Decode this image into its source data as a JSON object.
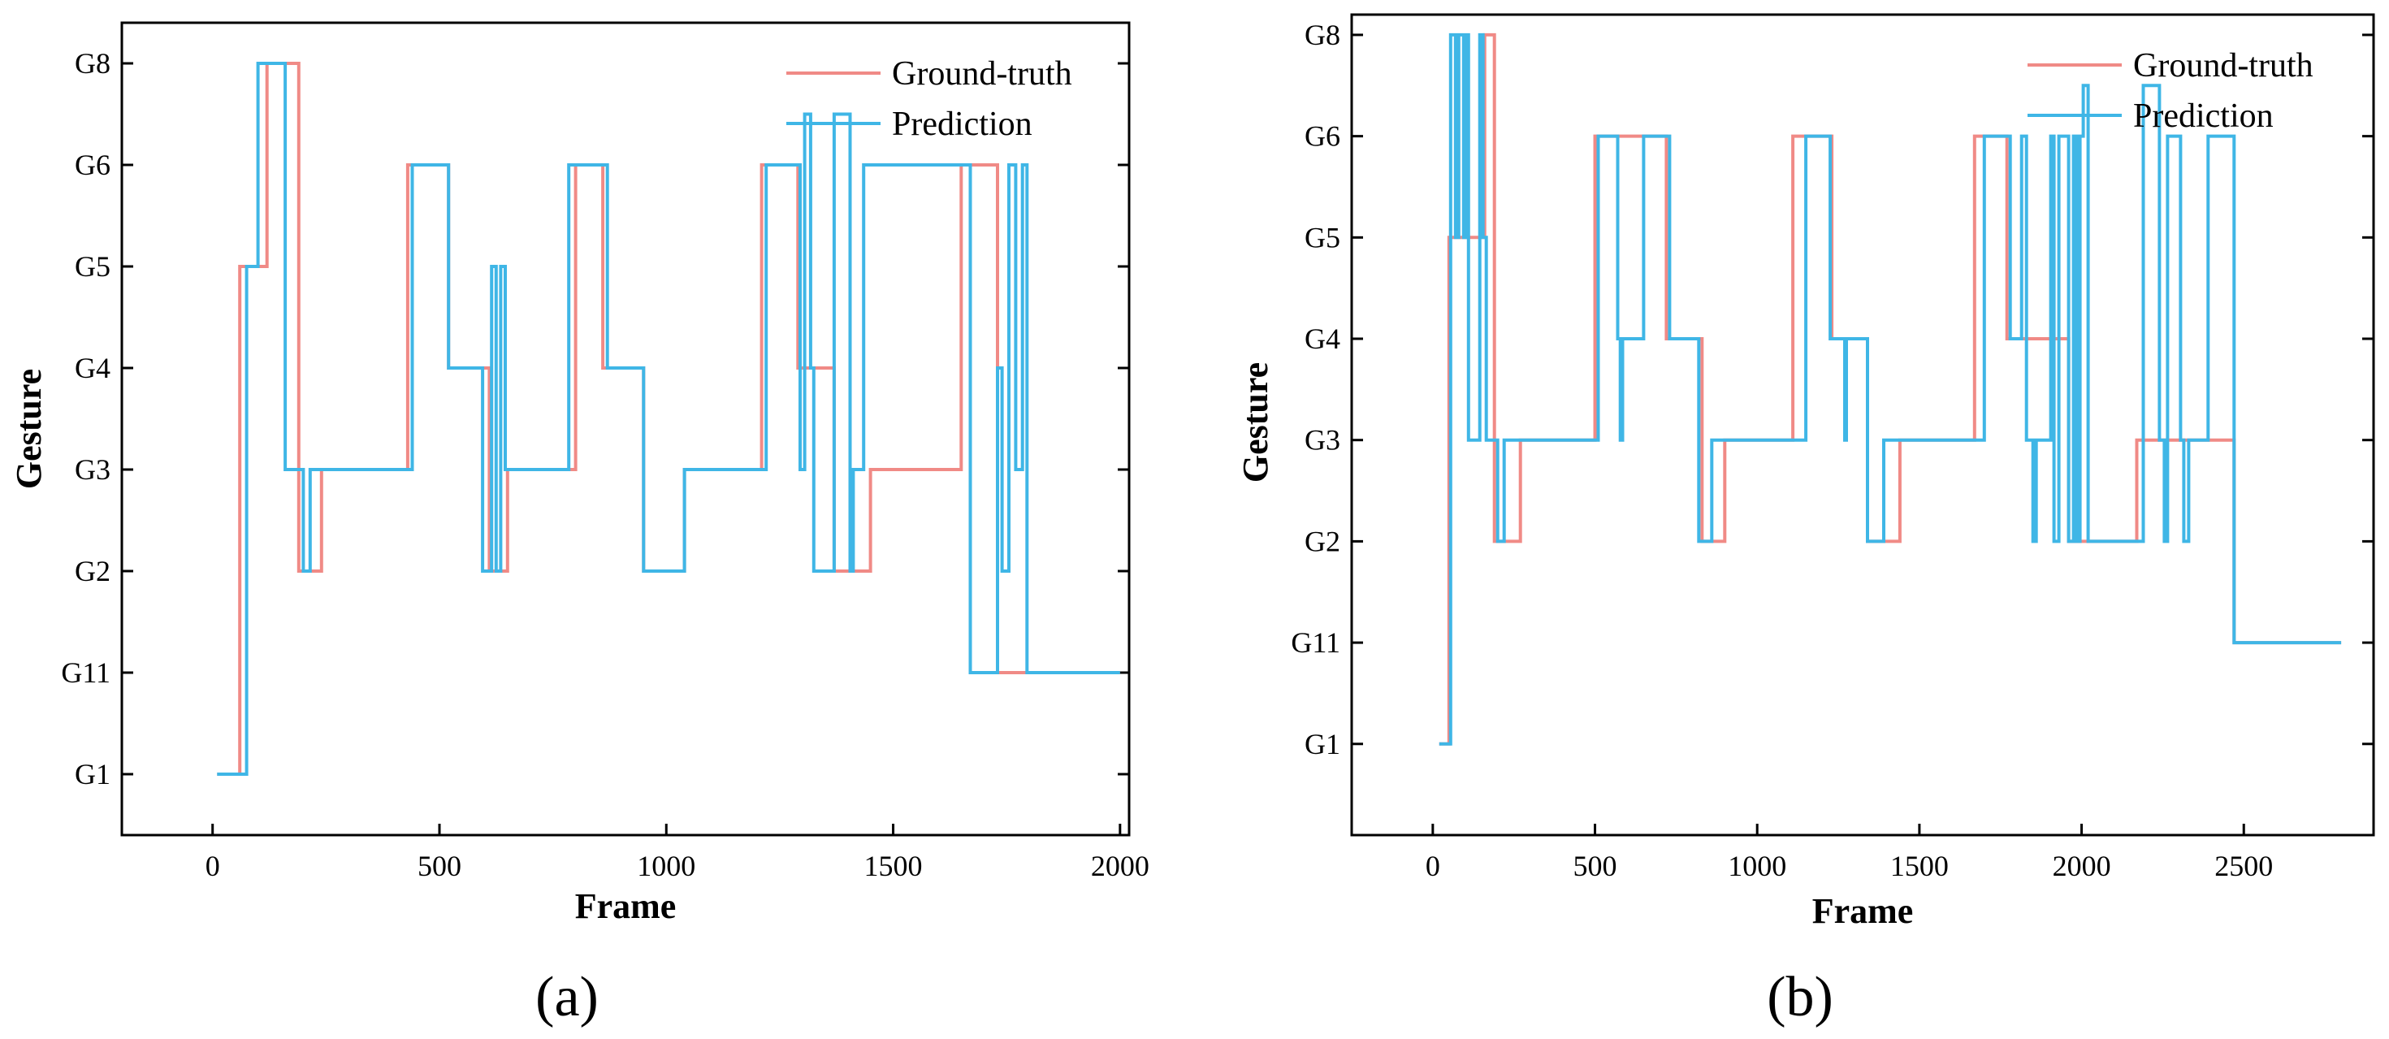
{
  "figure": {
    "panel_labels": [
      "(a)",
      "(b)"
    ]
  },
  "colors": {
    "ground_truth": "#f08a86",
    "prediction": "#3fb6e6",
    "axis": "#000000"
  },
  "chart_data": [
    {
      "type": "line",
      "step": true,
      "panel": "(a)",
      "title": "",
      "xlabel": "Frame",
      "ylabel": "Gesture",
      "xlim": [
        -200,
        2020
      ],
      "ylim": [
        -0.6,
        7.4
      ],
      "xticks": [
        0,
        500,
        1000,
        1500,
        2000
      ],
      "xtick_labels": [
        "0",
        "500",
        "1000",
        "1500",
        "2000"
      ],
      "yticks": [
        0,
        1,
        2,
        3,
        4,
        5,
        6,
        7
      ],
      "ytick_labels": [
        "G1",
        "G11",
        "G2",
        "G3",
        "G4",
        "G5",
        "G6",
        "G8"
      ],
      "legend_position": "top-right",
      "series": [
        {
          "name": "Ground-truth",
          "x": [
            10,
            60,
            60,
            120,
            120,
            190,
            190,
            240,
            240,
            430,
            430,
            520,
            520,
            610,
            610,
            650,
            650,
            800,
            800,
            860,
            860,
            950,
            950,
            1040,
            1040,
            1210,
            1210,
            1290,
            1290,
            1370,
            1370,
            1450,
            1450,
            1650,
            1650,
            1730,
            1730,
            1790,
            1790,
            2000
          ],
          "y": [
            0,
            0,
            5,
            5,
            7,
            7,
            2,
            2,
            3,
            3,
            6,
            6,
            4,
            4,
            2,
            2,
            3,
            3,
            6,
            6,
            4,
            4,
            2,
            2,
            3,
            3,
            6,
            6,
            4,
            4,
            2,
            2,
            3,
            3,
            6,
            6,
            1,
            1,
            1,
            1
          ]
        },
        {
          "name": "Prediction",
          "x": [
            10,
            75,
            75,
            100,
            100,
            160,
            160,
            200,
            200,
            215,
            215,
            440,
            440,
            520,
            520,
            595,
            595,
            615,
            615,
            625,
            625,
            635,
            635,
            645,
            645,
            785,
            785,
            870,
            870,
            950,
            950,
            1040,
            1040,
            1220,
            1220,
            1295,
            1295,
            1305,
            1305,
            1318,
            1318,
            1325,
            1325,
            1370,
            1370,
            1405,
            1405,
            1412,
            1412,
            1435,
            1435,
            1640,
            1640,
            1670,
            1670,
            1730,
            1730,
            1740,
            1740,
            1755,
            1755,
            1770,
            1770,
            1785,
            1785,
            1795,
            1795,
            2000
          ],
          "y": [
            0,
            0,
            5,
            5,
            7,
            7,
            3,
            3,
            2,
            2,
            3,
            3,
            6,
            6,
            4,
            4,
            2,
            2,
            5,
            5,
            2,
            2,
            5,
            5,
            3,
            3,
            6,
            6,
            4,
            4,
            2,
            2,
            3,
            3,
            6,
            6,
            3,
            3,
            6.5,
            6.5,
            4,
            4,
            2,
            2,
            6.5,
            6.5,
            2,
            2,
            3,
            3,
            6,
            6,
            6,
            6,
            1,
            1,
            4,
            4,
            2,
            2,
            6,
            6,
            3,
            3,
            6,
            6,
            1,
            1
          ]
        }
      ]
    },
    {
      "type": "line",
      "step": true,
      "panel": "(b)",
      "title": "",
      "xlabel": "Frame",
      "ylabel": "Gesture",
      "xlim": [
        -250,
        2900
      ],
      "ylim": [
        -0.9,
        7.2
      ],
      "xticks": [
        0,
        500,
        1000,
        1500,
        2000,
        2500
      ],
      "xtick_labels": [
        "0",
        "500",
        "1000",
        "1500",
        "2000",
        "2500"
      ],
      "yticks": [
        0,
        1,
        2,
        3,
        4,
        5,
        6,
        7
      ],
      "ytick_labels": [
        "G1",
        "G11",
        "G2",
        "G3",
        "G4",
        "G5",
        "G6",
        "G8"
      ],
      "legend_position": "top-right",
      "series": [
        {
          "name": "Ground-truth",
          "x": [
            20,
            50,
            50,
            160,
            160,
            190,
            190,
            270,
            270,
            500,
            500,
            640,
            640,
            720,
            720,
            830,
            830,
            900,
            900,
            1110,
            1110,
            1230,
            1230,
            1340,
            1340,
            1440,
            1440,
            1670,
            1670,
            1770,
            1770,
            1960,
            1960,
            2170,
            2170,
            2470,
            2470,
            2800
          ],
          "y": [
            0,
            0,
            5,
            5,
            7,
            7,
            2,
            2,
            3,
            3,
            6,
            6,
            6,
            6,
            4,
            4,
            2,
            2,
            3,
            3,
            6,
            6,
            4,
            4,
            2,
            2,
            3,
            3,
            6,
            6,
            4,
            4,
            2,
            2,
            3,
            3,
            1,
            1
          ]
        },
        {
          "name": "Prediction",
          "x": [
            20,
            55,
            55,
            70,
            70,
            80,
            80,
            95,
            95,
            100,
            100,
            110,
            110,
            145,
            145,
            155,
            155,
            165,
            165,
            200,
            200,
            220,
            220,
            510,
            510,
            570,
            570,
            578,
            578,
            585,
            585,
            650,
            650,
            730,
            730,
            820,
            820,
            860,
            860,
            1150,
            1150,
            1225,
            1225,
            1270,
            1270,
            1275,
            1275,
            1340,
            1340,
            1390,
            1390,
            1700,
            1700,
            1780,
            1780,
            1815,
            1815,
            1830,
            1830,
            1850,
            1850,
            1860,
            1860,
            1870,
            1870,
            1905,
            1905,
            1915,
            1915,
            1930,
            1930,
            1960,
            1960,
            1975,
            1975,
            1985,
            1985,
            1995,
            1995,
            2005,
            2005,
            2020,
            2020,
            2190,
            2190,
            2240,
            2240,
            2255,
            2255,
            2265,
            2265,
            2305,
            2305,
            2315,
            2315,
            2330,
            2330,
            2390,
            2390,
            2470,
            2470,
            2800
          ],
          "y": [
            0,
            0,
            7,
            7,
            5,
            5,
            7,
            7,
            5,
            5,
            7,
            7,
            3,
            3,
            7,
            7,
            5,
            5,
            3,
            3,
            2,
            2,
            3,
            3,
            6,
            6,
            4,
            4,
            3,
            3,
            4,
            4,
            6,
            6,
            4,
            4,
            2,
            2,
            3,
            3,
            6,
            6,
            4,
            4,
            3,
            3,
            4,
            4,
            2,
            2,
            3,
            3,
            6,
            6,
            4,
            4,
            6,
            6,
            3,
            3,
            2,
            2,
            3,
            3,
            3,
            3,
            6,
            6,
            2,
            2,
            6,
            6,
            2,
            2,
            6,
            6,
            2,
            2,
            6,
            6,
            6.5,
            6.5,
            2,
            2,
            6.5,
            6.5,
            3,
            3,
            2,
            2,
            6,
            6,
            3,
            3,
            2,
            2,
            3,
            3,
            6,
            6,
            1,
            1
          ]
        }
      ]
    }
  ]
}
